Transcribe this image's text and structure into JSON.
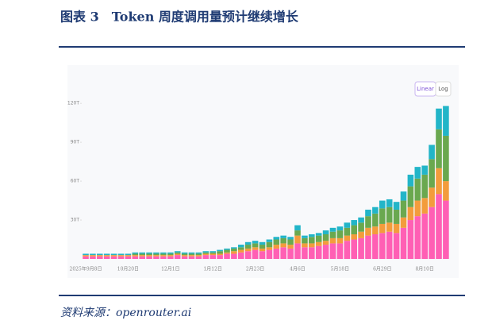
{
  "header": {
    "title": "图表 3　Token 周度调用量预计继续增长"
  },
  "footer": {
    "source": "资料来源：openrouter.ai"
  },
  "controls": {
    "buttons": [
      "Linear",
      "Log"
    ]
  },
  "chart_data": {
    "type": "stacked-bar",
    "categories": [
      "2025年9月8日",
      null,
      null,
      null,
      null,
      null,
      "10月20日",
      null,
      null,
      null,
      null,
      null,
      "12月1日",
      null,
      null,
      null,
      null,
      null,
      "1月12日",
      null,
      null,
      null,
      null,
      null,
      "2月23日",
      null,
      null,
      null,
      null,
      null,
      "4月6日",
      null,
      null,
      null,
      null,
      null,
      "5月18日",
      null,
      null,
      null,
      null,
      null,
      "6月29日",
      null,
      null,
      null,
      null,
      null,
      "8月10日",
      null,
      null,
      null
    ],
    "series": [
      {
        "color": "#ff5fb4",
        "values": [
          2,
          2,
          2,
          2,
          2,
          2,
          2,
          2,
          2,
          2,
          2,
          2,
          2,
          3,
          2,
          2,
          2,
          3,
          3,
          3,
          4,
          4,
          5,
          6,
          7,
          6,
          7,
          8,
          9,
          8,
          12,
          9,
          9,
          10,
          11,
          12,
          12,
          14,
          15,
          16,
          18,
          19,
          20,
          21,
          20,
          24,
          30,
          33,
          35,
          40,
          50,
          45
        ]
      },
      {
        "color": "#f39c3c",
        "values": [
          1,
          1,
          1,
          1,
          1,
          1,
          1,
          1,
          1,
          1,
          1,
          1,
          1,
          1,
          1,
          1,
          1,
          1,
          1,
          1,
          1,
          2,
          2,
          2,
          2,
          2,
          2,
          3,
          3,
          3,
          6,
          3,
          3,
          3,
          3,
          4,
          4,
          4,
          4,
          5,
          6,
          6,
          7,
          7,
          7,
          8,
          10,
          12,
          12,
          15,
          20,
          15
        ]
      },
      {
        "color": "#6aa84f",
        "values": [
          0,
          0,
          0,
          0,
          0,
          0,
          0,
          1,
          1,
          1,
          1,
          1,
          1,
          1,
          1,
          1,
          1,
          1,
          1,
          2,
          2,
          2,
          2,
          3,
          3,
          3,
          4,
          4,
          4,
          4,
          4,
          4,
          5,
          5,
          5,
          5,
          6,
          6,
          7,
          7,
          9,
          10,
          12,
          12,
          11,
          13,
          16,
          17,
          18,
          22,
          30,
          35
        ]
      },
      {
        "color": "#22b5c8",
        "values": [
          1,
          1,
          1,
          1,
          1,
          1,
          1,
          1,
          1,
          1,
          1,
          1,
          1,
          1,
          1,
          1,
          1,
          1,
          1,
          1,
          1,
          1,
          2,
          2,
          2,
          2,
          2,
          2,
          2,
          2,
          4,
          2,
          2,
          2,
          3,
          3,
          3,
          4,
          4,
          4,
          5,
          5,
          6,
          6,
          6,
          7,
          9,
          9,
          7,
          11,
          16,
          23
        ]
      }
    ],
    "ylim": [
      0,
      125
    ],
    "yticks": [
      {
        "value": 30,
        "label": "30T"
      },
      {
        "value": 60,
        "label": "60T"
      },
      {
        "value": 90,
        "label": "90T"
      },
      {
        "value": 120,
        "label": "120T"
      }
    ]
  }
}
